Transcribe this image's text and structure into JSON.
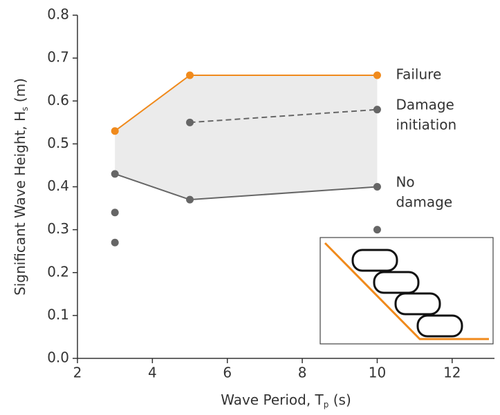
{
  "chart_data": {
    "type": "line",
    "xlabel": [
      "Wave Period, T",
      "p",
      " (s)"
    ],
    "ylabel": [
      "Significant Wave Height, H",
      "s",
      " (m)"
    ],
    "xlim": [
      2,
      13
    ],
    "ylim": [
      0,
      0.8
    ],
    "xticks": [
      2,
      4,
      6,
      8,
      10,
      12
    ],
    "yticks": [
      {
        "value": 0,
        "label": "0.0"
      },
      0.1,
      0.2,
      0.3,
      0.4,
      0.5,
      0.6,
      0.7,
      0.8
    ],
    "series": [
      {
        "name": "Failure",
        "color": "#f08a1c",
        "dash": false,
        "x": [
          3,
          5,
          10
        ],
        "values": [
          0.53,
          0.66,
          0.66
        ]
      },
      {
        "name": "Damage initiation",
        "color": "#666666",
        "dash": true,
        "x": [
          5,
          10
        ],
        "values": [
          0.55,
          0.58
        ]
      },
      {
        "name": "No damage",
        "color": "#666666",
        "dash": false,
        "x": [
          3,
          5,
          10
        ],
        "values": [
          0.43,
          0.37,
          0.4
        ]
      }
    ],
    "extra_points": {
      "color": "#666666",
      "x": [
        3,
        3,
        10
      ],
      "values": [
        0.34,
        0.27,
        0.3
      ]
    },
    "band": {
      "color": "#ebebeb"
    }
  }
}
